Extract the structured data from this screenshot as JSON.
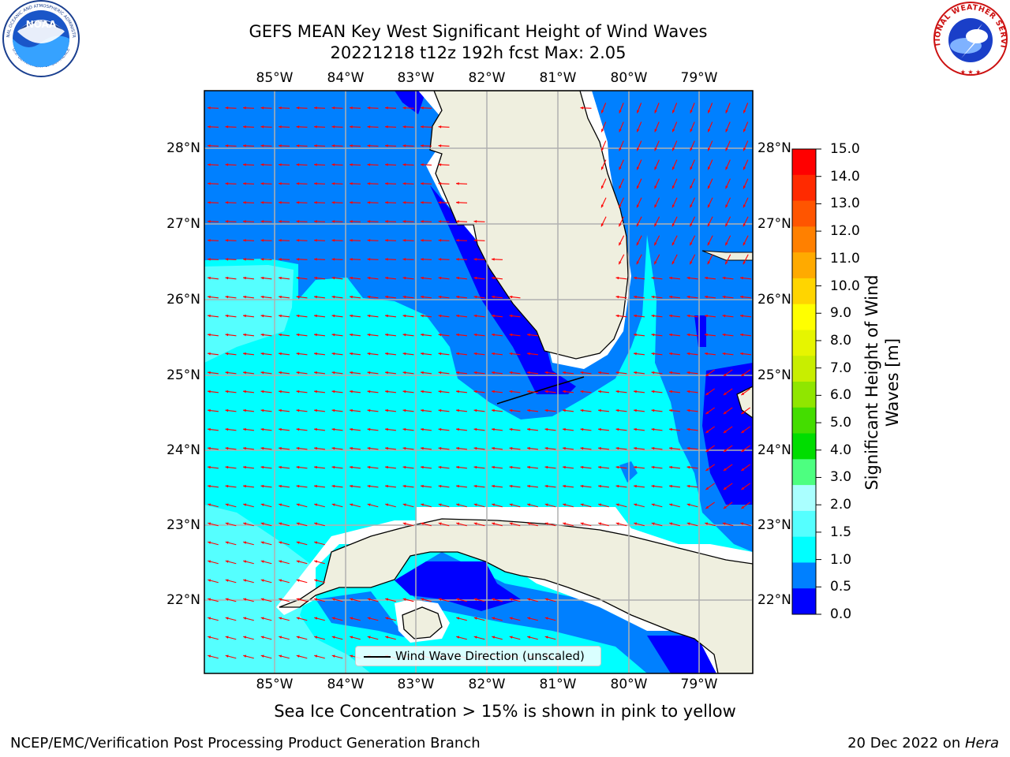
{
  "title_line1": "GEFS MEAN Key West Significant Height of Wind Waves",
  "title_line2": "20221218 t12z 192h fcst   Max: 2.05",
  "lon_labels": [
    "85°W",
    "84°W",
    "83°W",
    "82°W",
    "81°W",
    "80°W",
    "79°W"
  ],
  "lat_labels": [
    "28°N",
    "27°N",
    "26°N",
    "25°N",
    "24°N",
    "23°N",
    "22°N"
  ],
  "colorbar": {
    "label": "Significant Height of Wind Waves [m]",
    "ticks": [
      "15.0",
      "14.0",
      "13.0",
      "12.0",
      "11.0",
      "10.0",
      "9.0",
      "8.0",
      "7.0",
      "6.0",
      "5.0",
      "4.0",
      "3.0",
      "2.0",
      "1.5",
      "1.0",
      "0.5",
      "0.0"
    ],
    "colors": [
      "#ff0000",
      "#ff2a00",
      "#ff5500",
      "#ff8000",
      "#ffaa00",
      "#ffd500",
      "#ffff00",
      "#e6f500",
      "#c8ee00",
      "#90e600",
      "#44dd00",
      "#00dd00",
      "#4dff80",
      "#aaffff",
      "#55ffff",
      "#00ffff",
      "#0080ff",
      "#0000ff"
    ]
  },
  "legend_label": "Wind Wave Direction (unscaled)",
  "caption": "Sea Ice Concentration > 15% is shown in pink to yellow",
  "footer_left": "NCEP/EMC/Verification Post Processing Product Generation Branch",
  "footer_right_date": "20 Dec 2022 on ",
  "footer_right_host": "Hera",
  "logos": {
    "noaa_text": "NOAA",
    "noaa_ring_top": "NATIONAL OCEANIC AND ATMOSPHERIC ADMINISTRATION",
    "noaa_ring_bottom": "U.S. DEPARTMENT OF COMMERCE",
    "nws_ring_top": "NATIONAL WEATHER SERVICE"
  },
  "map_colors": {
    "land": "#efefdf",
    "ocean_low": "#0000ff",
    "ocean_mid": "#0080ff",
    "ocean_cyan": "#00ffff",
    "ocean_lightcyan": "#55ffff",
    "arrow": "#ff0000",
    "grid": "#b0b0b0"
  }
}
